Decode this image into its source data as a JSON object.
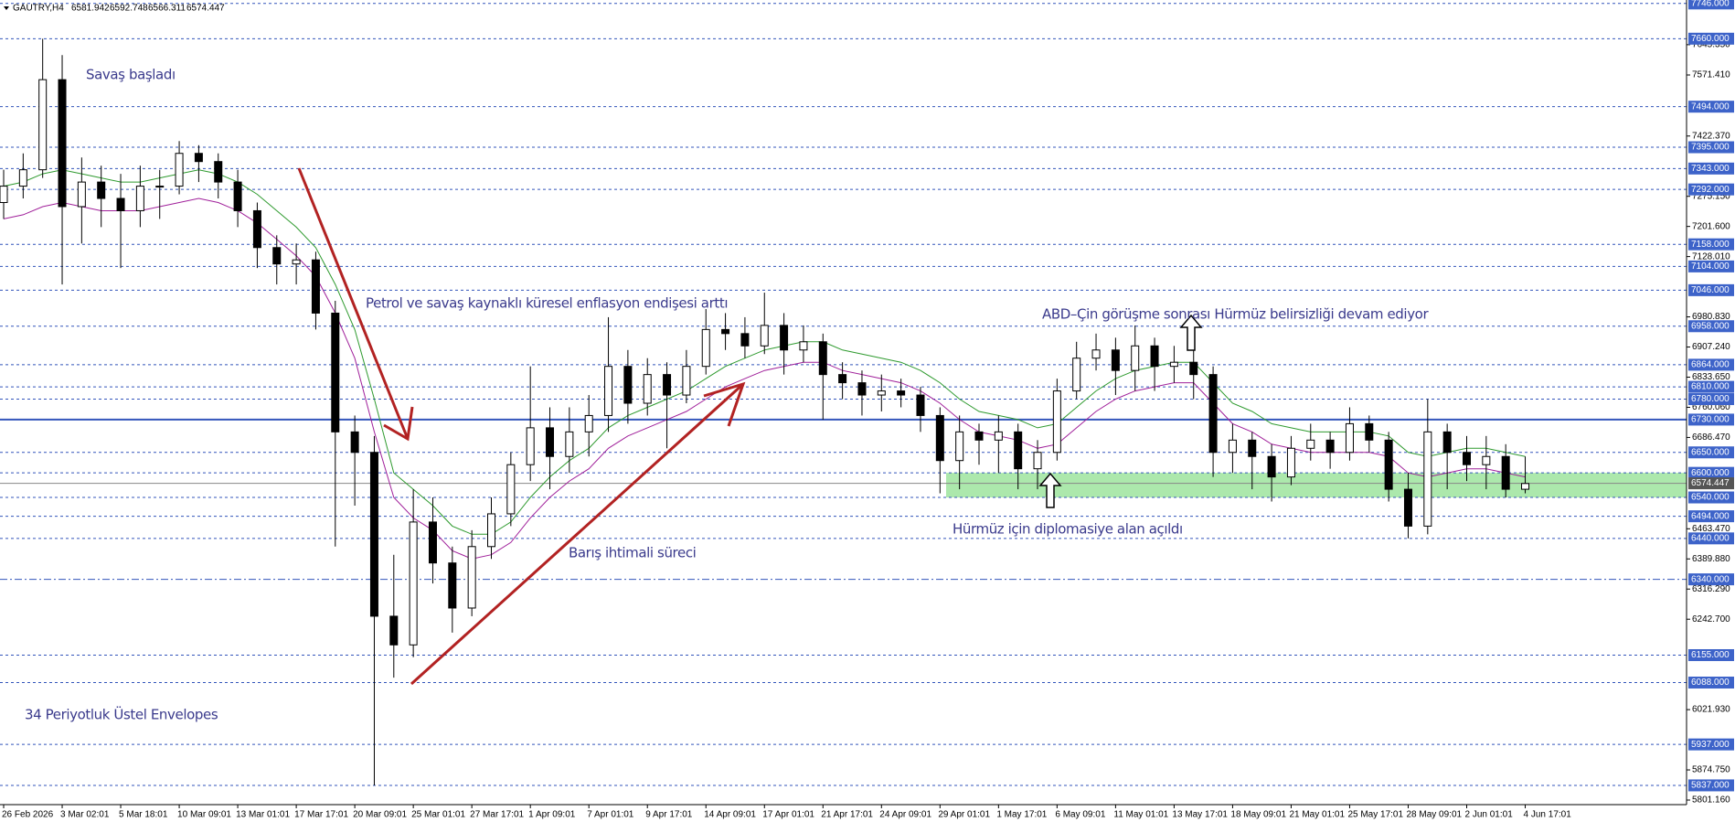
{
  "chart_data": {
    "type": "candlestick",
    "header": {
      "symbol": "GAUTRY,H4",
      "ohlc": [
        6581.942,
        6592.748,
        6566.311,
        6574.447
      ]
    },
    "categories": [
      "26 Feb 2026",
      null,
      null,
      "3 Mar 02:01",
      null,
      null,
      "5 Mar 18:01",
      null,
      null,
      "10 Mar 09:01",
      null,
      null,
      "13 Mar 01:01",
      null,
      null,
      "17 Mar 17:01",
      null,
      null,
      "20 Mar 09:01",
      null,
      null,
      "25 Mar 01:01",
      null,
      null,
      "27 Mar 17:01",
      null,
      null,
      "1 Apr 09:01",
      null,
      null,
      "7 Apr 01:01",
      null,
      null,
      "9 Apr 17:01",
      null,
      null,
      "14 Apr 09:01",
      null,
      null,
      "17 Apr 01:01",
      null,
      null,
      "21 Apr 17:01",
      null,
      null,
      "24 Apr 09:01",
      null,
      null,
      "29 Apr 01:01",
      null,
      null,
      "1 May 17:01",
      null,
      null,
      "6 May 09:01",
      null,
      null,
      "11 May 01:01",
      null,
      null,
      "13 May 17:01",
      null,
      null,
      "18 May 09:01",
      null,
      null,
      "21 May 01:01",
      null,
      null,
      "25 May 17:01",
      null,
      null,
      "28 May 09:01",
      null,
      null,
      "2 Jun 01:01",
      null,
      null,
      "4 Jun 17:01"
    ],
    "open": [
      7260,
      7300,
      7340,
      7560,
      7250,
      7310,
      7270,
      7240,
      7300,
      7300,
      7380,
      7360,
      7310,
      7240,
      7150,
      7110,
      7120,
      6990,
      6700,
      6650,
      6250,
      6180,
      6480,
      6380,
      6270,
      6420,
      6500,
      6620,
      6710,
      6640,
      6700,
      6740,
      6860,
      6770,
      6840,
      6790,
      6860,
      6950,
      6940,
      6910,
      6960,
      6900,
      6920,
      6840,
      6820,
      6790,
      6800,
      6790,
      6740,
      6630,
      6700,
      6680,
      6700,
      6610,
      6650,
      6800,
      6880,
      6900,
      6850,
      6910,
      6860,
      6870,
      6840,
      6650,
      6680,
      6640,
      6590,
      6660,
      6680,
      6650,
      6720,
      6680,
      6560,
      6470,
      6700,
      6650,
      6620,
      6640,
      6560
    ],
    "high": [
      7340,
      7380,
      7660,
      7620,
      7370,
      7350,
      7330,
      7350,
      7340,
      7410,
      7400,
      7380,
      7340,
      7260,
      7180,
      7160,
      7140,
      7020,
      6740,
      6690,
      6400,
      6560,
      6540,
      6420,
      6460,
      6540,
      6650,
      6860,
      6760,
      6760,
      6790,
      6980,
      6900,
      6880,
      6870,
      6900,
      7000,
      6990,
      6980,
      7040,
      6990,
      6960,
      6940,
      6870,
      6850,
      6840,
      6830,
      6810,
      6760,
      6740,
      6720,
      6740,
      6720,
      6680,
      6830,
      6920,
      6940,
      6930,
      6960,
      6930,
      6910,
      6900,
      6860,
      6720,
      6700,
      6670,
      6690,
      6720,
      6700,
      6760,
      6740,
      6700,
      6600,
      6780,
      6720,
      6690,
      6690,
      6670,
      6640
    ],
    "low": [
      7220,
      7270,
      7320,
      7060,
      7160,
      7200,
      7100,
      7200,
      7220,
      7280,
      7310,
      7270,
      7200,
      7100,
      7060,
      7060,
      6950,
      6420,
      6520,
      5837,
      6100,
      6150,
      6330,
      6210,
      6250,
      6390,
      6470,
      6580,
      6560,
      6600,
      6640,
      6700,
      6720,
      6740,
      6660,
      6770,
      6840,
      6900,
      6880,
      6890,
      6840,
      6870,
      6730,
      6780,
      6740,
      6750,
      6760,
      6700,
      6550,
      6560,
      6620,
      6600,
      6560,
      6560,
      6630,
      6780,
      6850,
      6790,
      6800,
      6800,
      6820,
      6780,
      6590,
      6600,
      6560,
      6530,
      6570,
      6630,
      6610,
      6630,
      6650,
      6530,
      6440,
      6450,
      6560,
      6580,
      6560,
      6540,
      6550
    ],
    "close": [
      7300,
      7340,
      7560,
      7250,
      7310,
      7270,
      7240,
      7300,
      7300,
      7380,
      7360,
      7310,
      7240,
      7150,
      7110,
      7120,
      6990,
      6700,
      6650,
      6250,
      6180,
      6480,
      6380,
      6270,
      6420,
      6500,
      6620,
      6710,
      6640,
      6700,
      6740,
      6860,
      6770,
      6840,
      6790,
      6860,
      6950,
      6940,
      6910,
      6960,
      6900,
      6920,
      6840,
      6820,
      6790,
      6800,
      6790,
      6740,
      6630,
      6700,
      6680,
      6700,
      6610,
      6650,
      6800,
      6880,
      6900,
      6850,
      6910,
      6860,
      6870,
      6840,
      6650,
      6680,
      6640,
      6590,
      6660,
      6680,
      6650,
      6720,
      6680,
      6560,
      6470,
      6700,
      6650,
      6620,
      6640,
      6560,
      6574
    ],
    "candle_color": "#000000",
    "envelopes": [
      {
        "color": "#2e9a2e",
        "values": [
          7300,
          7310,
          7330,
          7340,
          7330,
          7320,
          7310,
          7310,
          7320,
          7330,
          7340,
          7330,
          7310,
          7280,
          7240,
          7200,
          7150,
          7060,
          6950,
          6780,
          6600,
          6560,
          6520,
          6470,
          6450,
          6450,
          6480,
          6540,
          6590,
          6630,
          6660,
          6710,
          6740,
          6760,
          6780,
          6800,
          6830,
          6860,
          6880,
          6900,
          6910,
          6920,
          6920,
          6900,
          6890,
          6880,
          6870,
          6850,
          6820,
          6780,
          6750,
          6740,
          6730,
          6710,
          6720,
          6760,
          6800,
          6830,
          6850,
          6860,
          6870,
          6870,
          6820,
          6770,
          6750,
          6720,
          6710,
          6700,
          6700,
          6700,
          6700,
          6690,
          6650,
          6640,
          6650,
          6660,
          6660,
          6650,
          6640
        ]
      },
      {
        "color": "#a0209a",
        "values": [
          7220,
          7230,
          7250,
          7260,
          7250,
          7240,
          7240,
          7240,
          7250,
          7260,
          7270,
          7260,
          7240,
          7210,
          7170,
          7130,
          7080,
          6990,
          6880,
          6700,
          6540,
          6490,
          6460,
          6410,
          6390,
          6400,
          6430,
          6490,
          6540,
          6580,
          6610,
          6660,
          6690,
          6710,
          6730,
          6750,
          6780,
          6810,
          6830,
          6850,
          6860,
          6870,
          6870,
          6850,
          6840,
          6830,
          6820,
          6800,
          6770,
          6730,
          6700,
          6690,
          6680,
          6660,
          6670,
          6710,
          6750,
          6780,
          6800,
          6810,
          6820,
          6820,
          6770,
          6720,
          6700,
          6670,
          6660,
          6650,
          6650,
          6650,
          6650,
          6640,
          6600,
          6590,
          6600,
          6610,
          6610,
          6600,
          6590
        ]
      }
    ],
    "ylim": [
      5790,
      7750
    ],
    "yticks": [
      {
        "value": 7645.35,
        "label": "7645.350"
      },
      {
        "value": 7571.41,
        "label": "7571.410"
      },
      {
        "value": 7422.37,
        "label": "7422.370"
      },
      {
        "value": 7275.15,
        "label": "7275.150"
      },
      {
        "value": 7201.6,
        "label": "7201.600"
      },
      {
        "value": 7128.01,
        "label": "7128.010"
      },
      {
        "value": 6980.83,
        "label": "6980.830"
      },
      {
        "value": 6907.24,
        "label": "6907.240"
      },
      {
        "value": 6833.65,
        "label": "6833.650"
      },
      {
        "value": 6760.06,
        "label": "6760.060"
      },
      {
        "value": 6686.47,
        "label": "6686.470"
      },
      {
        "value": 6463.47,
        "label": "6463.470"
      },
      {
        "value": 6389.88,
        "label": "6389.880"
      },
      {
        "value": 6316.29,
        "label": "6316.290"
      },
      {
        "value": 6242.7,
        "label": "6242.700"
      },
      {
        "value": 6021.93,
        "label": "6021.930"
      },
      {
        "value": 5874.75,
        "label": "5874.750"
      },
      {
        "value": 5801.16,
        "label": "5801.160"
      }
    ],
    "levels": [
      {
        "value": 7746,
        "label": "7746.000"
      },
      {
        "value": 7660,
        "label": "7660.000"
      },
      {
        "value": 7494,
        "label": "7494.000"
      },
      {
        "value": 7395,
        "label": "7395.000"
      },
      {
        "value": 7343,
        "label": "7343.000"
      },
      {
        "value": 7292,
        "label": "7292.000"
      },
      {
        "value": 7158,
        "label": "7158.000"
      },
      {
        "value": 7104,
        "label": "7104.000"
      },
      {
        "value": 7046,
        "label": "7046.000"
      },
      {
        "value": 6958,
        "label": "6958.000"
      },
      {
        "value": 6864,
        "label": "6864.000"
      },
      {
        "value": 6810,
        "label": "6810.000"
      },
      {
        "value": 6780,
        "label": "6780.000"
      },
      {
        "value": 6730,
        "label": "6730.000",
        "style": "solid"
      },
      {
        "value": 6650,
        "label": "6650.000"
      },
      {
        "value": 6600,
        "label": "6600.000"
      },
      {
        "value": 6540,
        "label": "6540.000"
      },
      {
        "value": 6494,
        "label": "6494.000"
      },
      {
        "value": 6440,
        "label": "6440.000"
      },
      {
        "value": 6340,
        "label": "6340.000",
        "style": "dashdot"
      },
      {
        "value": 6155,
        "label": "6155.000"
      },
      {
        "value": 6088,
        "label": "6088.000"
      },
      {
        "value": 5937,
        "label": "5937.000"
      },
      {
        "value": 5837,
        "label": "5837.000"
      }
    ],
    "current_price": 6574.447,
    "zone_color": "#90e090",
    "annotations": [
      "Savaş başladı",
      "Petrol ve savaş kaynaklı küresel enflasyon endişesi arttı",
      "Barış ihtimali süreci",
      "ABD–Çin görüşme sonrası Hürmüz belirsizliği devam ediyor",
      "Hürmüz için diplomasiye alan açıldı",
      "34 Periyotluk Üstel Envelopes"
    ],
    "grid": false
  }
}
